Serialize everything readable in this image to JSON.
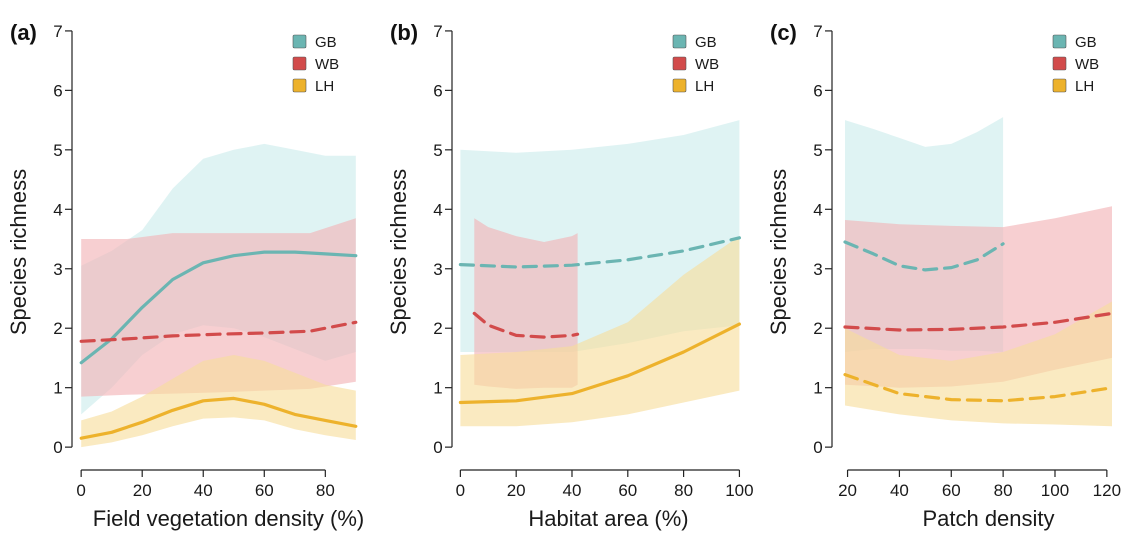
{
  "colors": {
    "GB": "#6bb5b2",
    "GB_band": "#cbeceb",
    "WB": "#d24b4b",
    "WB_band": "#f2b2b5",
    "LH": "#edb22c",
    "LH_band": "#f7dd9b",
    "axis": "#222222"
  },
  "legend_labels": [
    "GB",
    "WB",
    "LH"
  ],
  "chart_data": [
    {
      "type": "line",
      "panel_label": "(a)",
      "xlabel": "Field vegetation density (%)",
      "ylabel": "Species richness",
      "xlim": [
        -3,
        93
      ],
      "ylim": [
        -0.25,
        7.15
      ],
      "xticks": [
        0,
        20,
        40,
        60,
        80
      ],
      "yticks": [
        0,
        1,
        2,
        3,
        4,
        5,
        6,
        7
      ],
      "legend": "top-right",
      "series": [
        {
          "name": "GB",
          "style": "solid",
          "x": [
            0,
            10,
            20,
            30,
            40,
            50,
            60,
            70,
            80,
            90
          ],
          "y": [
            1.42,
            1.82,
            2.35,
            2.82,
            3.1,
            3.22,
            3.28,
            3.28,
            3.25,
            3.22
          ],
          "lower": [
            0.55,
            1.0,
            1.55,
            1.9,
            2.05,
            2.0,
            1.85,
            1.65,
            1.45,
            1.6
          ],
          "upper": [
            3.05,
            3.3,
            3.65,
            4.35,
            4.85,
            5.0,
            5.1,
            5.0,
            4.9,
            4.9
          ]
        },
        {
          "name": "WB",
          "style": "dashed",
          "x": [
            0,
            15,
            30,
            45,
            60,
            75,
            90
          ],
          "y": [
            1.78,
            1.82,
            1.87,
            1.9,
            1.92,
            1.95,
            2.1
          ],
          "lower": [
            0.85,
            0.88,
            0.9,
            0.92,
            0.95,
            0.98,
            1.1
          ],
          "upper": [
            3.5,
            3.5,
            3.6,
            3.6,
            3.6,
            3.6,
            3.85
          ]
        },
        {
          "name": "LH",
          "style": "solid",
          "x": [
            0,
            10,
            20,
            30,
            40,
            50,
            60,
            70,
            80,
            90
          ],
          "y": [
            0.15,
            0.25,
            0.42,
            0.62,
            0.78,
            0.82,
            0.72,
            0.55,
            0.45,
            0.35
          ],
          "lower": [
            0.0,
            0.08,
            0.2,
            0.35,
            0.48,
            0.5,
            0.45,
            0.3,
            0.2,
            0.12
          ],
          "upper": [
            0.45,
            0.6,
            0.85,
            1.15,
            1.45,
            1.55,
            1.45,
            1.25,
            1.05,
            0.95
          ]
        }
      ]
    },
    {
      "type": "line",
      "panel_label": "(b)",
      "xlabel": "Habitat area (%)",
      "ylabel": "Species richness",
      "xlim": [
        -3,
        102
      ],
      "ylim": [
        -0.25,
        7.15
      ],
      "xticks": [
        0,
        20,
        40,
        60,
        80,
        100
      ],
      "yticks": [
        0,
        1,
        2,
        3,
        4,
        5,
        6,
        7
      ],
      "legend": "top-right",
      "series": [
        {
          "name": "GB",
          "style": "dashed",
          "x": [
            0,
            20,
            40,
            60,
            80,
            100
          ],
          "y": [
            3.07,
            3.03,
            3.06,
            3.15,
            3.3,
            3.52
          ],
          "lower": [
            1.6,
            1.6,
            1.6,
            1.75,
            1.95,
            2.05
          ],
          "upper": [
            5.0,
            4.95,
            5.0,
            5.1,
            5.25,
            5.5
          ]
        },
        {
          "name": "WB",
          "style": "dashed",
          "x": [
            5,
            10,
            20,
            30,
            40,
            42
          ],
          "y": [
            2.25,
            2.05,
            1.88,
            1.85,
            1.88,
            1.9
          ],
          "lower": [
            1.05,
            1.02,
            0.98,
            1.0,
            1.0,
            1.05
          ],
          "upper": [
            3.85,
            3.7,
            3.55,
            3.45,
            3.55,
            3.6
          ]
        },
        {
          "name": "LH",
          "style": "solid",
          "x": [
            0,
            20,
            40,
            60,
            80,
            100
          ],
          "y": [
            0.75,
            0.78,
            0.9,
            1.2,
            1.6,
            2.07
          ],
          "lower": [
            0.35,
            0.35,
            0.42,
            0.55,
            0.75,
            0.95
          ],
          "upper": [
            1.55,
            1.6,
            1.7,
            2.1,
            2.9,
            3.55
          ]
        }
      ]
    },
    {
      "type": "line",
      "panel_label": "(c)",
      "xlabel": "Patch density",
      "ylabel": "Species richness",
      "xlim": [
        14,
        127
      ],
      "ylim": [
        -0.25,
        7.15
      ],
      "xticks": [
        20,
        40,
        60,
        80,
        100,
        120
      ],
      "yticks": [
        0,
        1,
        2,
        3,
        4,
        5,
        6,
        7
      ],
      "legend": "top-right",
      "series": [
        {
          "name": "GB",
          "style": "dashed",
          "x": [
            19,
            30,
            40,
            50,
            60,
            70,
            80
          ],
          "y": [
            3.45,
            3.25,
            3.05,
            2.98,
            3.02,
            3.15,
            3.42
          ],
          "lower": [
            1.6,
            1.65,
            1.65,
            1.65,
            1.62,
            1.62,
            1.6
          ],
          "upper": [
            5.5,
            5.35,
            5.2,
            5.05,
            5.1,
            5.3,
            5.55
          ]
        },
        {
          "name": "WB",
          "style": "dashed",
          "x": [
            19,
            40,
            60,
            80,
            100,
            122
          ],
          "y": [
            2.02,
            1.97,
            1.98,
            2.02,
            2.1,
            2.25
          ],
          "lower": [
            1.05,
            1.0,
            1.02,
            1.1,
            1.3,
            1.5
          ],
          "upper": [
            3.82,
            3.75,
            3.72,
            3.7,
            3.85,
            4.05
          ]
        },
        {
          "name": "LH",
          "style": "dashed",
          "x": [
            19,
            40,
            60,
            80,
            100,
            122
          ],
          "y": [
            1.22,
            0.9,
            0.8,
            0.78,
            0.85,
            1.0
          ],
          "lower": [
            0.7,
            0.55,
            0.45,
            0.4,
            0.38,
            0.35
          ],
          "upper": [
            2.0,
            1.55,
            1.45,
            1.6,
            1.9,
            2.45
          ]
        }
      ]
    }
  ]
}
